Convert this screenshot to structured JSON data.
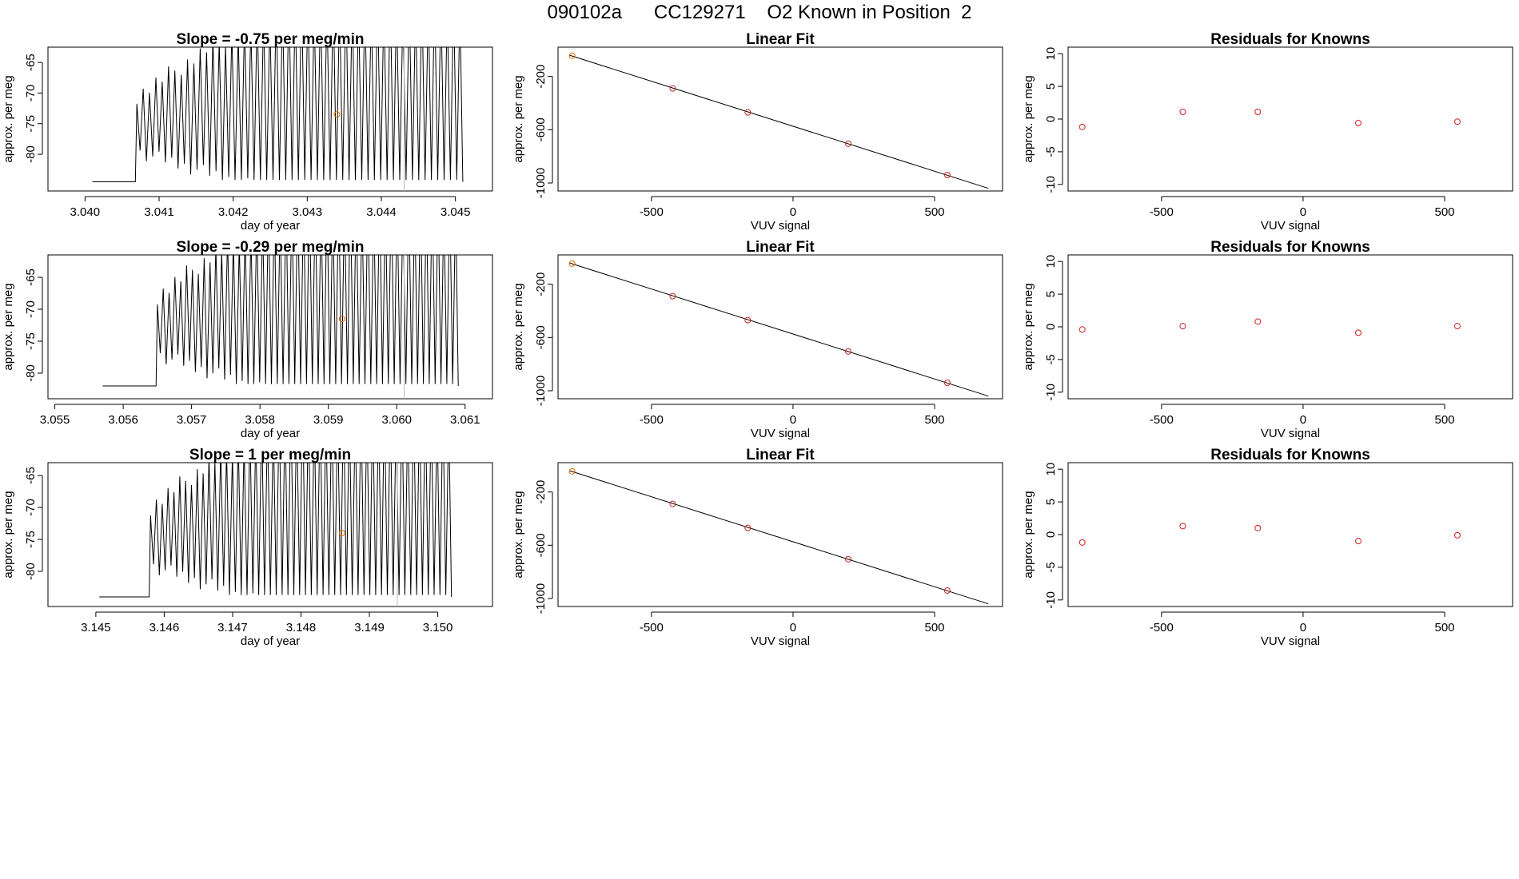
{
  "page_title": "090102a      CC129271    O2 Known in Position  2",
  "colors": {
    "trace": "#000000",
    "known_point": "#e07000",
    "residual_point": "#d02020",
    "grid_line": "#bbbbbb"
  },
  "chart_data": [
    {
      "id": "ts1",
      "type": "line",
      "title": "Slope =  -0.75  per meg/min",
      "xlabel": "day of year",
      "ylabel": "approx. per meg",
      "xlim": [
        3.0395,
        3.0455
      ],
      "ylim": [
        -86,
        -62.5
      ],
      "xticks": [
        3.04,
        3.041,
        3.042,
        3.043,
        3.044,
        3.045
      ],
      "xtick_labels": [
        "3.040",
        "3.041",
        "3.042",
        "3.043",
        "3.044",
        "3.045"
      ],
      "yticks": [
        -65,
        -70,
        -75,
        -80
      ],
      "start": 3.0407,
      "end": 3.0451,
      "baseline": -84.5,
      "marker": {
        "x": 3.0434,
        "y": -73.5
      }
    },
    {
      "id": "fit1",
      "type": "line+scatter",
      "title": "Linear Fit",
      "xlabel": "VUV signal",
      "ylabel": "approx. per meg",
      "xlim": [
        -830,
        740
      ],
      "ylim": [
        -1060,
        20
      ],
      "xticks": [
        -500,
        0,
        500
      ],
      "yticks": [
        -200,
        -600,
        -1000
      ],
      "line": {
        "x": [
          -790,
          690
        ],
        "y": [
          -40,
          -1040
        ]
      },
      "x": [
        -780,
        -425,
        -160,
        195,
        545
      ],
      "y": [
        -45,
        -290,
        -470,
        -705,
        -940
      ]
    },
    {
      "id": "res1",
      "type": "scatter",
      "title": "Residuals for Knowns",
      "xlabel": "VUV signal",
      "ylabel": "approx. per meg",
      "xlim": [
        -830,
        740
      ],
      "ylim": [
        -11,
        11
      ],
      "xticks": [
        -500,
        0,
        500
      ],
      "yticks": [
        10,
        5,
        0,
        -5,
        -10
      ],
      "x": [
        -780,
        -425,
        -160,
        195,
        545
      ],
      "y": [
        -1.2,
        1.1,
        1.1,
        -0.6,
        -0.4
      ]
    },
    {
      "id": "ts2",
      "type": "line",
      "title": "Slope =  -0.29  per meg/min",
      "xlabel": "day of year",
      "ylabel": "approx. per meg",
      "xlim": [
        3.0549,
        3.0614
      ],
      "ylim": [
        -84,
        -61.5
      ],
      "xticks": [
        3.055,
        3.056,
        3.057,
        3.058,
        3.059,
        3.06,
        3.061
      ],
      "xtick_labels": [
        "3.055",
        "3.056",
        "3.057",
        "3.058",
        "3.059",
        "3.060",
        "3.061"
      ],
      "yticks": [
        -65,
        -70,
        -75,
        -80
      ],
      "start": 3.0565,
      "end": 3.0609,
      "baseline": -82,
      "marker": {
        "x": 3.0592,
        "y": -71.5
      }
    },
    {
      "id": "fit2",
      "type": "line+scatter",
      "title": "Linear Fit",
      "xlabel": "VUV signal",
      "ylabel": "approx. per meg",
      "xlim": [
        -830,
        740
      ],
      "ylim": [
        -1060,
        20
      ],
      "xticks": [
        -500,
        0,
        500
      ],
      "yticks": [
        -200,
        -600,
        -1000
      ],
      "line": {
        "x": [
          -790,
          690
        ],
        "y": [
          -40,
          -1040
        ]
      },
      "x": [
        -780,
        -425,
        -160,
        195,
        545
      ],
      "y": [
        -45,
        -290,
        -470,
        -705,
        -940
      ]
    },
    {
      "id": "res2",
      "type": "scatter",
      "title": "Residuals for Knowns",
      "xlabel": "VUV signal",
      "ylabel": "approx. per meg",
      "xlim": [
        -830,
        740
      ],
      "ylim": [
        -11,
        11
      ],
      "xticks": [
        -500,
        0,
        500
      ],
      "yticks": [
        10,
        5,
        0,
        -5,
        -10
      ],
      "x": [
        -780,
        -425,
        -160,
        195,
        545
      ],
      "y": [
        -0.4,
        0.1,
        0.8,
        -0.9,
        0.1
      ]
    },
    {
      "id": "ts3",
      "type": "line",
      "title": "Slope =  1  per meg/min",
      "xlabel": "day of year",
      "ylabel": "approx. per meg",
      "xlim": [
        3.1443,
        3.1508
      ],
      "ylim": [
        -85.5,
        -63
      ],
      "xticks": [
        3.145,
        3.146,
        3.147,
        3.148,
        3.149,
        3.15
      ],
      "xtick_labels": [
        "3.145",
        "3.146",
        "3.147",
        "3.148",
        "3.149",
        "3.150"
      ],
      "yticks": [
        -65,
        -70,
        -75,
        -80
      ],
      "start": 3.1458,
      "end": 3.1502,
      "baseline": -84,
      "marker": {
        "x": 3.1486,
        "y": -74
      }
    },
    {
      "id": "fit3",
      "type": "line+scatter",
      "title": "Linear Fit",
      "xlabel": "VUV signal",
      "ylabel": "approx. per meg",
      "xlim": [
        -830,
        740
      ],
      "ylim": [
        -1060,
        20
      ],
      "xticks": [
        -500,
        0,
        500
      ],
      "yticks": [
        -200,
        -600,
        -1000
      ],
      "line": {
        "x": [
          -790,
          690
        ],
        "y": [
          -40,
          -1040
        ]
      },
      "x": [
        -780,
        -425,
        -160,
        195,
        545
      ],
      "y": [
        -45,
        -290,
        -470,
        -705,
        -940
      ]
    },
    {
      "id": "res3",
      "type": "scatter",
      "title": "Residuals for Knowns",
      "xlabel": "VUV signal",
      "ylabel": "approx. per meg",
      "xlim": [
        -830,
        740
      ],
      "ylim": [
        -11,
        11
      ],
      "xticks": [
        -500,
        0,
        500
      ],
      "yticks": [
        10,
        5,
        0,
        -5,
        -10
      ],
      "x": [
        -780,
        -425,
        -160,
        195,
        545
      ],
      "y": [
        -1.2,
        1.3,
        1.0,
        -1.0,
        -0.1
      ]
    }
  ]
}
